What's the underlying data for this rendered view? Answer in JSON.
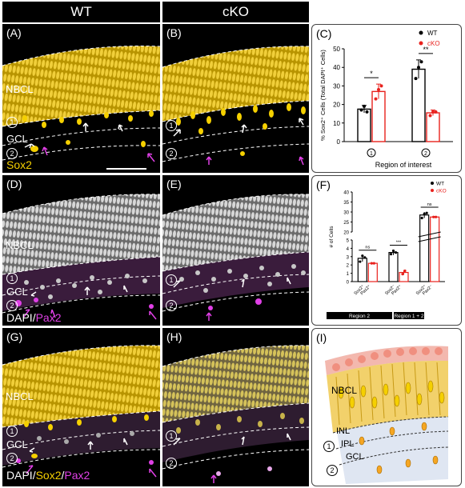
{
  "headers": {
    "wt": "WT",
    "cko": "cKO"
  },
  "panels": {
    "a": {
      "label": "(A)",
      "nbcl": "NBCL",
      "r1": "1",
      "gcl": "GCL",
      "r2": "2",
      "stain": "Sox2"
    },
    "b": {
      "label": "(B)",
      "r1": "1",
      "r2": "2"
    },
    "d": {
      "label": "(D)",
      "nbcl": "NBCL",
      "r1": "1",
      "gcl": "GCL",
      "r2": "2",
      "stain_dapi": "DAPI",
      "slash": "/",
      "stain_pax2": "Pax2"
    },
    "e": {
      "label": "(E)",
      "r1": "1",
      "r2": "2"
    },
    "g": {
      "label": "(G)",
      "nbcl": "NBCL",
      "r1": "1",
      "gcl": "GCL",
      "r2": "2",
      "stain_dapi": "DAPI",
      "slash": "/",
      "stain_sox2": "Sox2",
      "slash2": "/",
      "stain_pax2": "Pax2"
    },
    "h": {
      "label": "(H)",
      "r1": "1",
      "r2": "2"
    },
    "i": {
      "label": "(I)",
      "nbcl": "NBCL",
      "inl": "INL",
      "ipl": "IPL",
      "gcl": "GCL",
      "r1": "1",
      "r2": "2"
    },
    "c": {
      "label": "(C)"
    },
    "f": {
      "label": "(F)"
    }
  },
  "colors": {
    "wt": "#000000",
    "cko": "#e8211d",
    "sox2": "#f5d000",
    "pax2": "#e040e6"
  },
  "chart_data": [
    {
      "type": "bar",
      "panel": "C",
      "ylabel": "% Sox2⁺ Cells (Total DAPI⁺ Cells)",
      "xlabel": "Region of interest",
      "categories": [
        "1",
        "2"
      ],
      "ylim": [
        0,
        50
      ],
      "yticks": [
        0,
        10,
        20,
        30,
        40,
        50
      ],
      "legend_position": "top-right",
      "series": [
        {
          "name": "WT",
          "values": [
            17.5,
            39
          ],
          "errors": [
            2,
            5
          ],
          "points": [
            [
              17,
              19,
              16
            ],
            [
              34,
              40,
              43
            ]
          ]
        },
        {
          "name": "cKO",
          "values": [
            27,
            15.5
          ],
          "errors": [
            4,
            1.5
          ],
          "points": [
            [
              23,
              28,
              30
            ],
            [
              14,
              16,
              16
            ]
          ]
        }
      ],
      "significance": [
        "*",
        "**"
      ]
    },
    {
      "type": "bar",
      "panel": "F",
      "ylabel": "# of Cells",
      "categories": [
        "Sox2⁺ Pax2⁺",
        "Sox2⁻ Pax2⁺",
        "Sox2⁺ Pax2⁻"
      ],
      "region_labels": [
        "Region 2",
        "Region 1 + 2"
      ],
      "yticks_low": [
        0,
        1,
        2,
        3,
        4,
        5
      ],
      "yticks_high": [
        20,
        25,
        30,
        35,
        40
      ],
      "legend_position": "top-right",
      "series": [
        {
          "name": "WT",
          "values": [
            2.8,
            3.5,
            28.5
          ],
          "errors": [
            0.4,
            0.3,
            1.5
          ],
          "points": [
            [
              2.4,
              3.1,
              2.9
            ],
            [
              3.3,
              3.7,
              3.5
            ],
            [
              27,
              29,
              29.5
            ]
          ]
        },
        {
          "name": "cKO",
          "values": [
            2.2,
            1.1,
            27.5
          ],
          "errors": [
            0.1,
            0.3,
            0.5
          ],
          "points": [
            [
              2.2,
              2.2
            ],
            [
              0.9,
              1.3
            ],
            [
              27.5,
              27.5
            ]
          ]
        }
      ],
      "significance": [
        "ns",
        "***",
        "ns"
      ]
    }
  ]
}
